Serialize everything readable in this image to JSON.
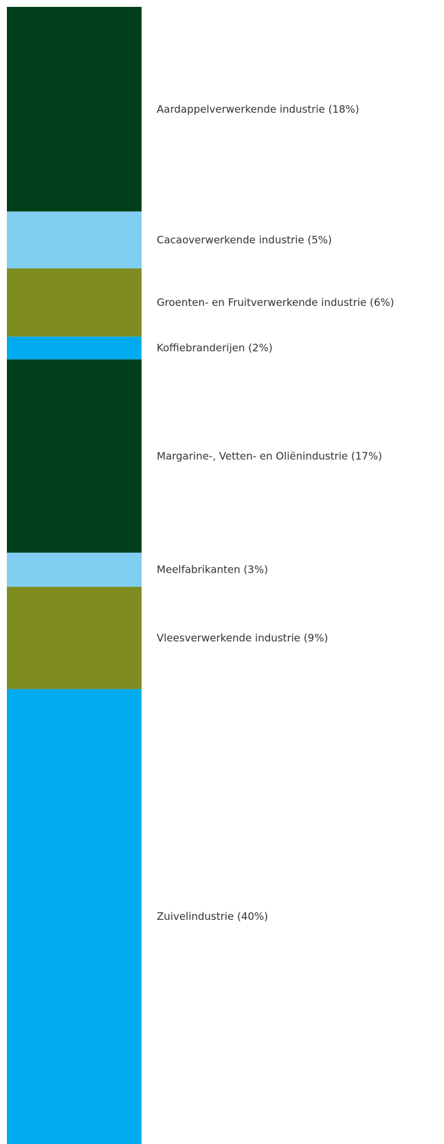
{
  "chart_data": {
    "type": "stacked-bar",
    "categories": [
      "Aardappelverwerkende industrie",
      "Cacaoverwerkende industrie",
      "Groenten- en Fruitverwerkende industrie",
      "Koffiebranderijen",
      "Margarine-, Vetten- en Oliënindustrie",
      "Meelfabrikanten",
      "Vleesverwerkende industrie",
      "Zuivelindustrie"
    ],
    "values": [
      18,
      5,
      6,
      2,
      17,
      3,
      9,
      40
    ],
    "value_labels": [
      "(18%)",
      "(5%)",
      "(6%)",
      "(2%)",
      "(17%)",
      "(3%)",
      "(9%)",
      "(40%)"
    ],
    "colors": [
      "#003f19",
      "#80cff3",
      "#7f8c1f",
      "#00acef",
      "#003f19",
      "#80cff3",
      "#7f8c1f",
      "#00acef"
    ],
    "ylim": [
      0,
      100
    ]
  }
}
